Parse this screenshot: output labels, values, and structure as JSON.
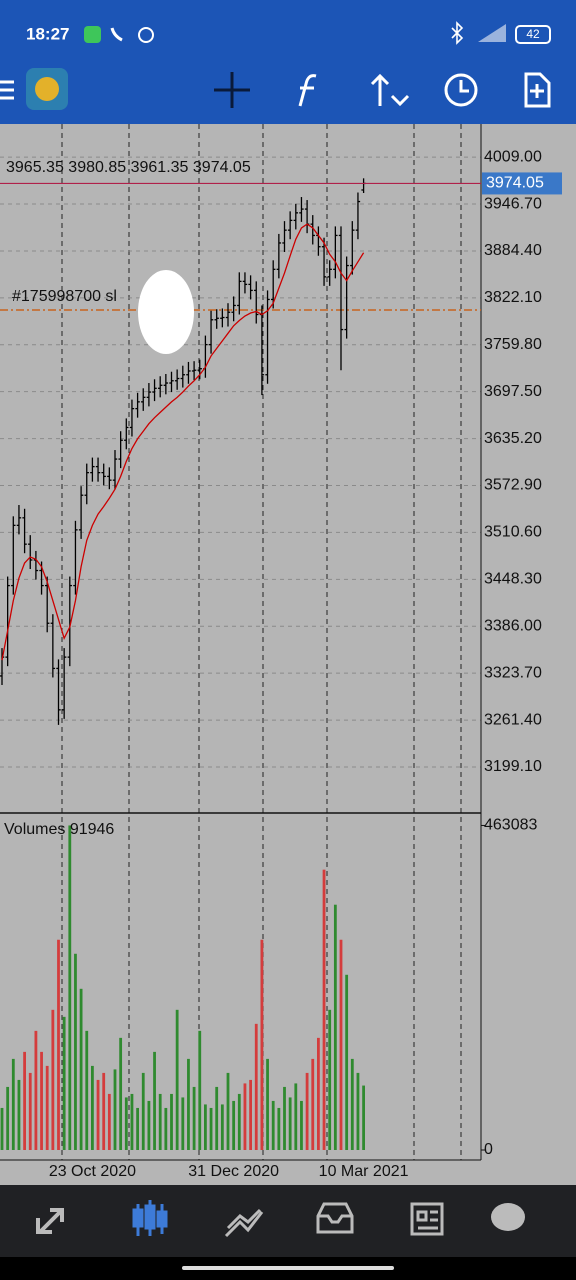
{
  "status": {
    "time": "18:27",
    "battery": "42"
  },
  "chart_data": {
    "type": "ohlc",
    "categories": [
      null,
      null,
      null,
      null,
      null,
      null,
      null,
      null,
      null,
      null,
      null,
      null,
      null,
      null,
      null,
      null,
      "23 Oct 2020",
      null,
      null,
      null,
      null,
      null,
      null,
      null,
      null,
      null,
      null,
      null,
      null,
      null,
      null,
      null,
      null,
      null,
      null,
      null,
      null,
      null,
      null,
      null,
      null,
      "31 Dec 2020",
      null,
      null,
      null,
      null,
      null,
      null,
      null,
      null,
      null,
      null,
      null,
      null,
      null,
      null,
      null,
      null,
      null,
      null,
      null,
      null,
      null,
      null,
      "10 Mar 2021"
    ],
    "open": [
      3320,
      3345,
      3440,
      3520,
      3530,
      3495,
      3474,
      3460,
      3440,
      3390,
      3330,
      3275,
      3345,
      3440,
      3514,
      3560,
      3590,
      3598,
      3590,
      3585,
      3580,
      3608,
      3633,
      3650,
      3675,
      3684,
      3690,
      3697,
      3702,
      3706,
      3709,
      3712,
      3715,
      3720,
      3725,
      3726,
      3728,
      3760,
      3793,
      3795,
      3796,
      3803,
      3812,
      3844,
      3840,
      3832,
      3800,
      3720,
      3820,
      3860,
      3895,
      3912,
      3925,
      3935,
      3940,
      3920,
      3905,
      3890,
      3850,
      3860,
      3905,
      3780,
      3865,
      3912,
      3965.35
    ],
    "high": [
      3357,
      3452,
      3532,
      3547,
      3542,
      3507,
      3486,
      3472,
      3452,
      3402,
      3342,
      3357,
      3452,
      3526,
      3572,
      3602,
      3610,
      3610,
      3602,
      3597,
      3620,
      3645,
      3662,
      3687,
      3696,
      3702,
      3709,
      3714,
      3718,
      3721,
      3724,
      3727,
      3732,
      3737,
      3738,
      3740,
      3772,
      3805,
      3807,
      3808,
      3815,
      3824,
      3856,
      3856,
      3852,
      3844,
      3812,
      3832,
      3872,
      3907,
      3924,
      3937,
      3947,
      3956,
      3952,
      3932,
      3917,
      3902,
      3872,
      3917,
      3917,
      3877,
      3924,
      3962,
      3980.85
    ],
    "low": [
      3308,
      3333,
      3428,
      3508,
      3483,
      3462,
      3448,
      3428,
      3378,
      3318,
      3255,
      3263,
      3333,
      3428,
      3502,
      3548,
      3578,
      3578,
      3573,
      3568,
      3568,
      3596,
      3621,
      3638,
      3663,
      3672,
      3678,
      3685,
      3690,
      3694,
      3697,
      3700,
      3703,
      3708,
      3713,
      3714,
      3716,
      3748,
      3781,
      3783,
      3784,
      3791,
      3800,
      3828,
      3820,
      3788,
      3693,
      3708,
      3808,
      3848,
      3883,
      3900,
      3913,
      3923,
      3908,
      3893,
      3878,
      3838,
      3838,
      3848,
      3726,
      3768,
      3853,
      3900,
      3961.35
    ],
    "close": [
      3345,
      3440,
      3520,
      3530,
      3495,
      3474,
      3460,
      3440,
      3390,
      3330,
      3275,
      3345,
      3440,
      3514,
      3560,
      3590,
      3598,
      3590,
      3585,
      3580,
      3608,
      3633,
      3650,
      3675,
      3684,
      3690,
      3697,
      3702,
      3706,
      3709,
      3712,
      3715,
      3720,
      3725,
      3726,
      3728,
      3760,
      3793,
      3795,
      3796,
      3803,
      3812,
      3844,
      3840,
      3832,
      3800,
      3720,
      3820,
      3860,
      3895,
      3912,
      3925,
      3935,
      3940,
      3920,
      3905,
      3890,
      3850,
      3860,
      3905,
      3780,
      3865,
      3912,
      3950,
      3974.05
    ],
    "bar_color": "#000000",
    "ma": {
      "color": "#cc0000",
      "values": [
        3341,
        3380,
        3420,
        3450,
        3470,
        3478,
        3475,
        3465,
        3445,
        3420,
        3395,
        3370,
        3385,
        3420,
        3465,
        3500,
        3520,
        3535,
        3545,
        3556,
        3568,
        3585,
        3605,
        3622,
        3635,
        3645,
        3655,
        3663,
        3670,
        3677,
        3684,
        3690,
        3697,
        3705,
        3712,
        3720,
        3730,
        3745,
        3755,
        3765,
        3775,
        3785,
        3792,
        3798,
        3802,
        3804,
        3800,
        3805,
        3815,
        3835,
        3855,
        3878,
        3900,
        3915,
        3920,
        3915,
        3905,
        3895,
        3880,
        3870,
        3855,
        3845,
        3858,
        3870,
        3882
      ]
    },
    "ylim": [
      3138,
      4049
    ],
    "yticks": [
      {
        "value": 4009,
        "label": "4009.00"
      },
      {
        "value": 3946.7,
        "label": "3946.70"
      },
      {
        "value": 3884.4,
        "label": "3884.40"
      },
      {
        "value": 3822.1,
        "label": "3822.10"
      },
      {
        "value": 3759.8,
        "label": "3759.80"
      },
      {
        "value": 3697.5,
        "label": "3697.50"
      },
      {
        "value": 3635.2,
        "label": "3635.20"
      },
      {
        "value": 3572.9,
        "label": "3572.90"
      },
      {
        "value": 3510.6,
        "label": "3510.60"
      },
      {
        "value": 3448.3,
        "label": "3448.30"
      },
      {
        "value": 3386,
        "label": "3386.00"
      },
      {
        "value": 3323.7,
        "label": "3323.70"
      },
      {
        "value": 3261.4,
        "label": "3261.40"
      },
      {
        "value": 3199.1,
        "label": "3199.10"
      }
    ],
    "grid": true,
    "last_price_color": "#b0204a",
    "order": {
      "label": "#175998700 sl",
      "price": 3806,
      "color": "#c8641e"
    },
    "volume": {
      "label": "Volumes",
      "up_color": "#2f8a2f",
      "down_color": "#d43c3c",
      "ylim": [
        0,
        478000
      ],
      "yticks": [
        0,
        463083
      ],
      "values": [
        60000,
        90000,
        130000,
        100000,
        140000,
        110000,
        170000,
        140000,
        120000,
        200000,
        300000,
        190000,
        463083,
        280000,
        230000,
        170000,
        120000,
        100000,
        110000,
        80000,
        115000,
        160000,
        75000,
        80000,
        60000,
        110000,
        70000,
        140000,
        80000,
        60000,
        80000,
        200000,
        75000,
        130000,
        90000,
        170000,
        65000,
        60000,
        90000,
        65000,
        110000,
        70000,
        80000,
        95000,
        100000,
        180000,
        300000,
        130000,
        70000,
        60000,
        90000,
        75000,
        95000,
        70000,
        110000,
        130000,
        160000,
        400000,
        200000,
        350000,
        300000,
        250000,
        130000,
        110000,
        91946
      ]
    }
  }
}
